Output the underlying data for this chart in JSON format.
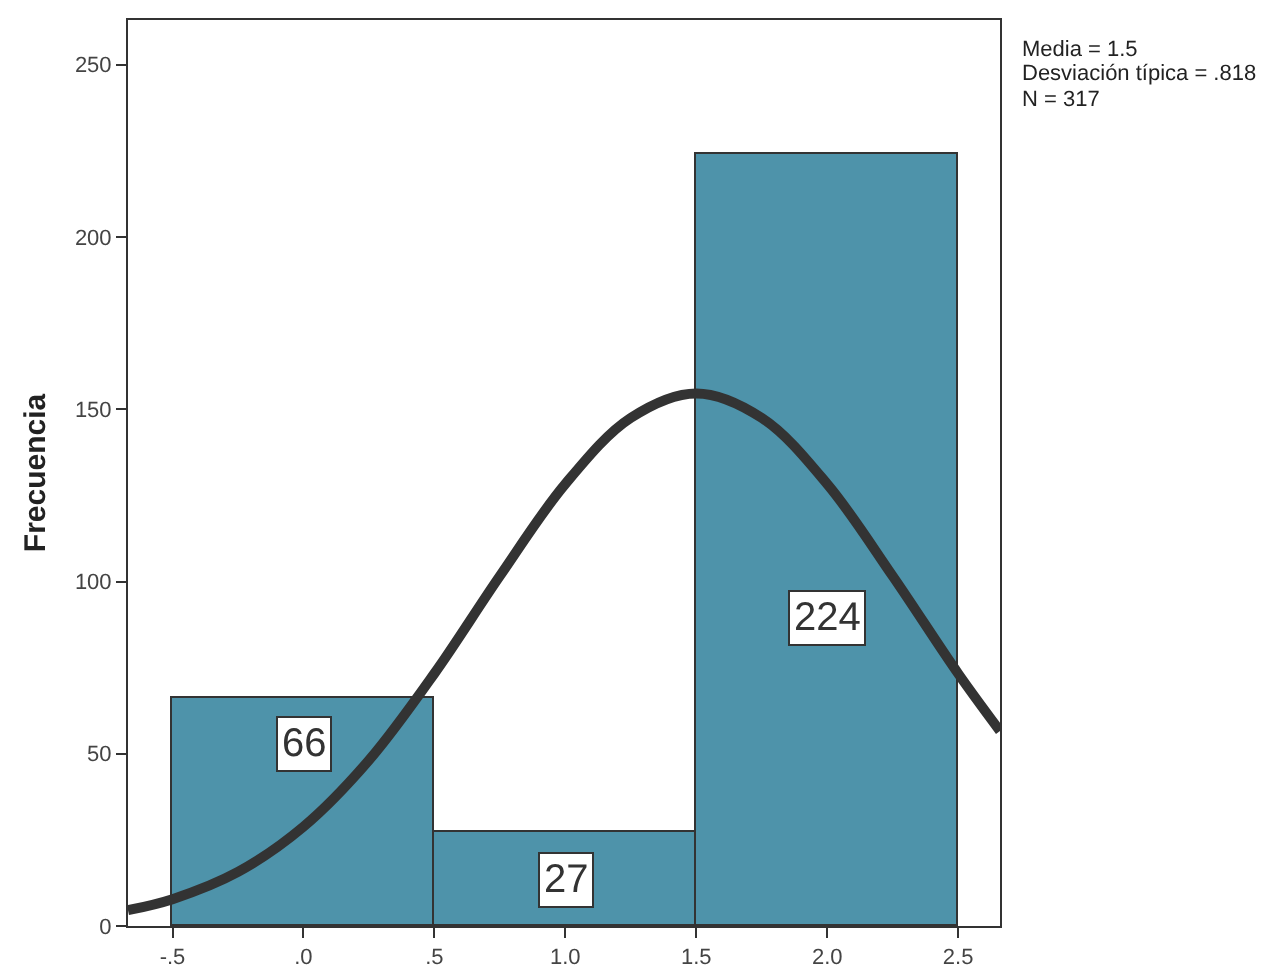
{
  "chart_data": {
    "type": "histogram",
    "ylabel": "Frecuencia",
    "bins": [
      -0.5,
      0.5,
      1.5,
      2.5
    ],
    "values": [
      66,
      27,
      224
    ],
    "color": "#4e93aa",
    "value_labels": [
      "66",
      "27",
      "224"
    ],
    "series": [
      {
        "type": "line",
        "color": "#333333",
        "x": [
          -0.67,
          -0.5,
          -0.25,
          0,
          0.25,
          0.5,
          0.75,
          1,
          1.25,
          1.5,
          1.75,
          2,
          2.25,
          2.5,
          2.66
        ],
        "values": [
          4.6,
          7.8,
          15.7,
          28.8,
          48.1,
          73.3,
          101.6,
          128.3,
          147.5,
          154.6,
          147.5,
          128.3,
          101.6,
          73.3,
          56.6
        ]
      }
    ],
    "xlim": [
      -0.67,
      2.66
    ],
    "xticks": [
      {
        "value": -0.5,
        "label": "-.5"
      },
      {
        "value": 0,
        "label": ".0"
      },
      {
        "value": 0.5,
        "label": ".5"
      },
      {
        "value": 1,
        "label": "1.0"
      },
      {
        "value": 1.5,
        "label": "1.5"
      },
      {
        "value": 2,
        "label": "2.0"
      },
      {
        "value": 2.5,
        "label": "2.5"
      }
    ],
    "ylim": [
      0,
      263
    ],
    "yticks": [
      0,
      50,
      100,
      150,
      200,
      250
    ],
    "grid": false,
    "annotations": [
      "Media = 1.5",
      "Desviación típica = .818",
      "N = 317"
    ]
  }
}
